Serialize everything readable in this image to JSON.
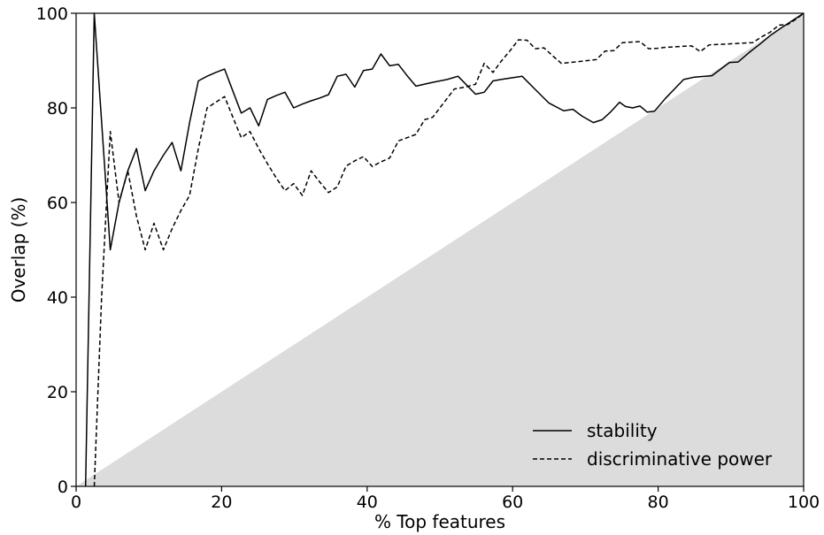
{
  "chart_data": {
    "type": "line",
    "title": "",
    "xlabel": "% Top features",
    "ylabel": "Overlap (%)",
    "xlim": [
      0,
      100
    ],
    "ylim": [
      0,
      100
    ],
    "x_ticks": [
      0,
      20,
      40,
      60,
      80,
      100
    ],
    "y_ticks": [
      0,
      20,
      40,
      60,
      80,
      100
    ],
    "grid": false,
    "legend_placement": "lower-right",
    "shaded_region": {
      "description": "area below diagonal y = x",
      "color": "#dcdcdc"
    },
    "series": [
      {
        "name": "stability",
        "style": "solid",
        "color": "#000000",
        "x": [
          1.3,
          2.5,
          4.7,
          5.9,
          7.1,
          8.3,
          9.5,
          10.7,
          12.0,
          13.2,
          14.4,
          15.6,
          16.8,
          18.0,
          19.2,
          20.4,
          21.6,
          22.7,
          23.9,
          25.1,
          26.3,
          27.5,
          28.7,
          29.9,
          31.1,
          32.3,
          33.5,
          34.7,
          35.9,
          37.1,
          38.3,
          39.5,
          40.7,
          41.9,
          43.1,
          44.3,
          45.5,
          46.7,
          49.0,
          51.0,
          52.5,
          54.9,
          56.1,
          57.3,
          58.4,
          61.3,
          63.1,
          65.0,
          67.0,
          68.3,
          69.5,
          71.1,
          72.3,
          73.5,
          74.7,
          75.5,
          76.5,
          77.5,
          78.5,
          79.5,
          81.0,
          83.5,
          85.0,
          87.4,
          89.8,
          91.0,
          92.5,
          94.0,
          95.5,
          97.0,
          98.5,
          100.0
        ],
        "y": [
          0,
          100,
          50,
          60,
          66.7,
          71.4,
          62.5,
          66.7,
          70.0,
          72.7,
          66.7,
          76.9,
          85.7,
          86.7,
          87.5,
          88.2,
          83.3,
          78.9,
          80.0,
          76.2,
          81.8,
          82.6,
          83.3,
          80.0,
          80.8,
          81.5,
          82.1,
          82.8,
          86.7,
          87.1,
          84.4,
          87.9,
          88.2,
          91.4,
          88.9,
          89.2,
          86.8,
          84.6,
          85.4,
          86.0,
          86.7,
          82.9,
          83.3,
          85.7,
          86.0,
          86.7,
          83.9,
          81.0,
          79.4,
          79.7,
          78.3,
          76.9,
          77.5,
          79.2,
          81.2,
          80.3,
          80.0,
          80.4,
          79.1,
          79.3,
          82.0,
          86.0,
          86.5,
          86.8,
          89.6,
          89.7,
          91.7,
          93.5,
          95.4,
          97.0,
          98.5,
          100.0
        ]
      },
      {
        "name": "discriminative power",
        "style": "dashed",
        "color": "#000000",
        "x": [
          2.5,
          3.5,
          4.7,
          5.9,
          7.1,
          8.3,
          9.5,
          10.7,
          12.0,
          13.2,
          14.4,
          15.6,
          16.8,
          18.0,
          19.2,
          20.4,
          21.6,
          22.7,
          23.9,
          25.1,
          26.3,
          27.5,
          28.7,
          29.9,
          31.1,
          32.3,
          33.5,
          34.7,
          35.9,
          37.1,
          38.3,
          39.5,
          40.7,
          41.9,
          43.1,
          44.3,
          45.5,
          46.7,
          47.9,
          49.0,
          50.5,
          52.0,
          53.5,
          54.9,
          56.1,
          57.3,
          58.4,
          59.6,
          60.8,
          62.0,
          63.1,
          64.3,
          65.5,
          66.7,
          67.9,
          69.1,
          70.3,
          71.5,
          72.7,
          73.9,
          75.1,
          76.3,
          77.5,
          78.7,
          79.9,
          81.0,
          82.2,
          83.4,
          84.6,
          85.8,
          87.0,
          88.2,
          89.4,
          90.6,
          91.8,
          93.0,
          94.2,
          95.4,
          96.6,
          97.8,
          99.0,
          100.0
        ],
        "y": [
          0,
          40,
          75,
          60,
          66.7,
          57.1,
          50.0,
          55.6,
          50.0,
          54.5,
          58.3,
          61.5,
          71.4,
          80.0,
          81.2,
          82.4,
          77.8,
          73.7,
          75.0,
          71.4,
          68.2,
          65.2,
          62.5,
          64.0,
          61.5,
          66.7,
          64.3,
          62.1,
          63.3,
          67.7,
          68.8,
          69.7,
          67.6,
          68.6,
          69.4,
          73.0,
          73.7,
          74.4,
          77.5,
          78.0,
          81.0,
          84.0,
          84.4,
          85.0,
          89.4,
          87.5,
          89.8,
          92.0,
          94.4,
          94.3,
          92.5,
          92.7,
          91.0,
          89.4,
          89.6,
          89.8,
          90.0,
          90.2,
          92.0,
          92.1,
          93.8,
          93.9,
          94.0,
          92.5,
          92.6,
          92.8,
          92.9,
          93.0,
          93.1,
          91.9,
          93.3,
          93.4,
          93.5,
          93.6,
          93.7,
          93.8,
          95.0,
          96.0,
          97.5,
          97.6,
          98.8,
          100.0
        ]
      }
    ]
  }
}
